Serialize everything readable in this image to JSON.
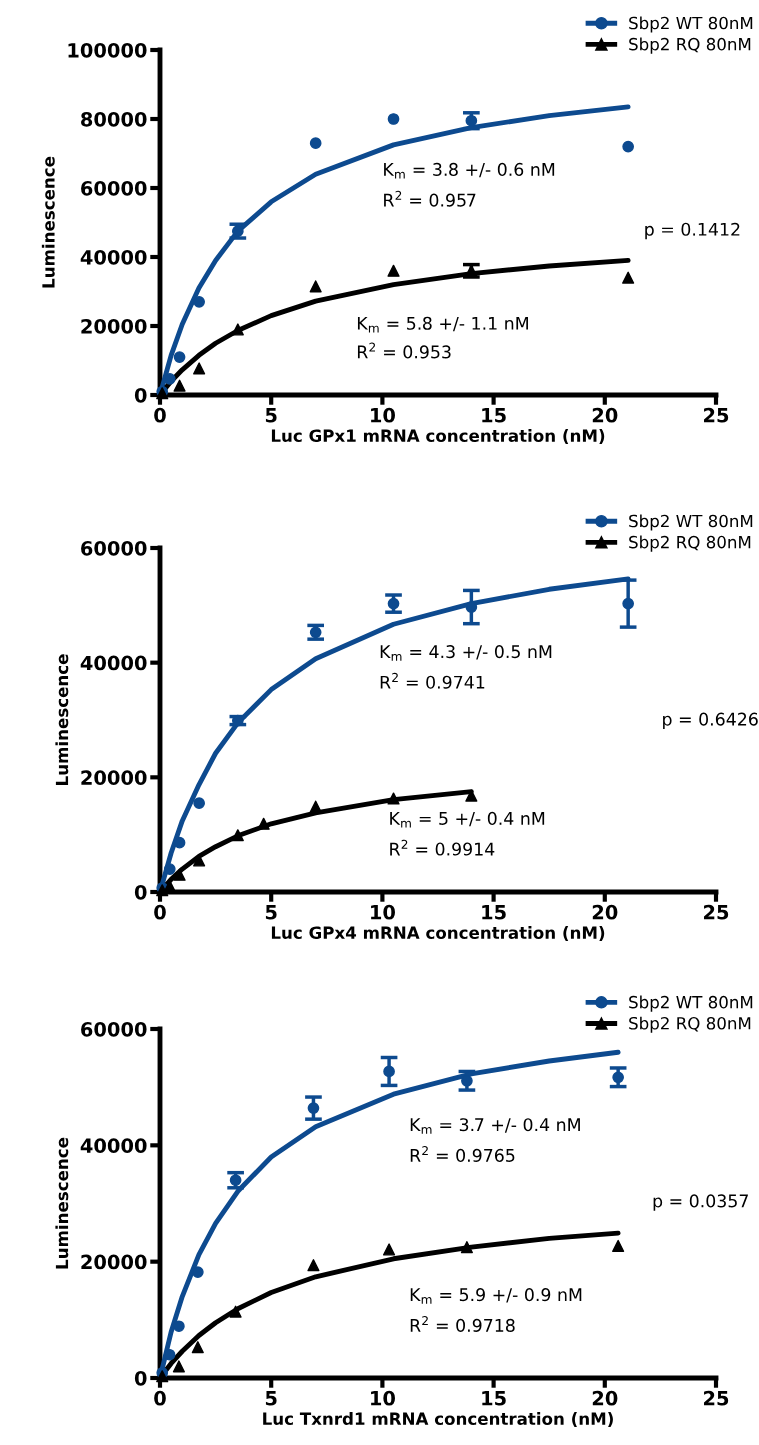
{
  "chart_data": [
    {
      "type": "scatter",
      "xlabel": "Luc GPx1 mRNA concentration (nM)",
      "ylabel": "Luminescence",
      "xlim": [
        0,
        25
      ],
      "xticks": [
        0,
        5,
        10,
        15,
        20,
        25
      ],
      "ylim": [
        0,
        100000
      ],
      "yticks": [
        0,
        20000,
        40000,
        60000,
        80000,
        100000
      ],
      "legend": "top right",
      "annotations": [
        "K$_{m}$ = 3.8 +/- 0.6 nM",
        "R$^{2}$ = 0.957",
        "K$_{m}$ = 5.8 +/- 1.1 nM",
        "R$^{2}$ = 0.953",
        "p = 0.1412"
      ],
      "series": [
        {
          "name": "Sbp2 WT 80nM",
          "color": "#0d4a8f",
          "marker": "circle",
          "x": [
            0.1,
            0.44,
            0.88,
            1.76,
            3.5,
            7,
            10.5,
            14,
            21.05
          ],
          "values": [
            1000,
            4700,
            11000,
            27000,
            47500,
            73000,
            80000,
            79500,
            72000
          ],
          "errors": [
            null,
            null,
            null,
            null,
            2000,
            null,
            null,
            2300,
            null
          ]
        },
        {
          "name": "Sbp2 RQ 80nM",
          "color": "#000000",
          "marker": "triangle",
          "x": [
            0.1,
            0.88,
            1.76,
            3.5,
            7,
            10.5,
            14,
            21.05
          ],
          "values": [
            500,
            2700,
            7700,
            19000,
            31500,
            36000,
            36000,
            34000
          ],
          "errors": [
            null,
            null,
            null,
            null,
            null,
            null,
            1800,
            null
          ]
        },
        {
          "type": "line",
          "color": "#0d4a8f",
          "marker": "none",
          "x": [
            0,
            0.5,
            1,
            1.75,
            2.5,
            3.5,
            5,
            7,
            10.5,
            14,
            17.5,
            21.05
          ],
          "values": [
            0,
            11500,
            20500,
            31000,
            39000,
            47500,
            56000,
            64000,
            72500,
            77500,
            81000,
            83500
          ]
        },
        {
          "type": "line",
          "color": "#000000",
          "marker": "none",
          "x": [
            0,
            0.5,
            1,
            1.75,
            2.5,
            3.5,
            5,
            7,
            10.5,
            14,
            17.5,
            21.05
          ],
          "values": [
            0,
            4000,
            7300,
            11500,
            15000,
            18700,
            23000,
            27200,
            32000,
            35200,
            37400,
            39000
          ]
        }
      ]
    },
    {
      "type": "scatter",
      "xlabel": "Luc GPx4 mRNA concentration (nM)",
      "ylabel": "Luminescence",
      "xlim": [
        0,
        25
      ],
      "xticks": [
        0,
        5,
        10,
        15,
        20,
        25
      ],
      "ylim": [
        0,
        60000
      ],
      "yticks": [
        0,
        20000,
        40000,
        60000
      ],
      "legend": "top right",
      "annotations": [
        "K$_{m}$ = 4.3 +/- 0.5 nM",
        "R$^{2}$ = 0.9741",
        "K$_{m}$ = 5 +/- 0.4 nM",
        "R$^{2}$ = 0.9914",
        "p = 0.6426"
      ],
      "series": [
        {
          "name": "Sbp2 WT 80nM",
          "color": "#0d4a8f",
          "marker": "circle",
          "x": [
            0.1,
            0.44,
            0.88,
            1.76,
            3.5,
            7,
            10.5,
            14,
            21.05
          ],
          "values": [
            700,
            4000,
            8600,
            15500,
            29900,
            45300,
            50300,
            49700,
            50300
          ],
          "errors": [
            null,
            null,
            null,
            null,
            700,
            1200,
            1500,
            2900,
            4100
          ]
        },
        {
          "name": "Sbp2 RQ 80nM",
          "color": "#000000",
          "marker": "triangle",
          "x": [
            0.1,
            0.44,
            0.88,
            1.76,
            3.5,
            4.66,
            7,
            10.5,
            14
          ],
          "values": [
            300,
            1000,
            3000,
            5500,
            9900,
            11900,
            14900,
            16300,
            16800
          ]
        },
        {
          "type": "line",
          "color": "#0d4a8f",
          "marker": "none",
          "x": [
            0,
            0.5,
            1,
            1.75,
            2.5,
            3.5,
            5,
            7,
            10.5,
            14,
            17.5,
            21.05
          ],
          "values": [
            0,
            6800,
            12400,
            18700,
            24200,
            29500,
            35300,
            40700,
            46700,
            50300,
            52800,
            54600
          ]
        },
        {
          "type": "line",
          "color": "#000000",
          "marker": "none",
          "x": [
            0,
            0.5,
            1,
            1.75,
            2.5,
            3.5,
            5,
            7,
            10.5,
            14
          ],
          "values": [
            0,
            2200,
            4000,
            6200,
            7900,
            9800,
            11900,
            13800,
            16100,
            17500
          ]
        }
      ]
    },
    {
      "type": "scatter",
      "xlabel": "Luc Txnrd1 mRNA concentration (nM)",
      "ylabel": "Luminescence",
      "xlim": [
        0,
        25
      ],
      "xticks": [
        0,
        5,
        10,
        15,
        20,
        25
      ],
      "ylim": [
        0,
        60000
      ],
      "yticks": [
        0,
        20000,
        40000,
        60000
      ],
      "legend": "top right",
      "annotations": [
        "K$_{m}$ = 3.7 +/- 0.4 nM",
        "R$^{2}$ = 0.9765",
        "K$_{m}$ = 5.9 +/- 0.9 nM",
        "R$^{2}$ = 0.9718",
        "p = 0.0357"
      ],
      "series": [
        {
          "name": "Sbp2 WT 80nM",
          "color": "#0d4a8f",
          "marker": "circle",
          "x": [
            0.1,
            0.43,
            0.85,
            1.7,
            3.4,
            6.9,
            10.3,
            13.8,
            20.6
          ],
          "values": [
            900,
            4000,
            8900,
            18200,
            34000,
            46400,
            52700,
            51100,
            51700
          ],
          "errors": [
            null,
            null,
            null,
            null,
            1300,
            1900,
            2400,
            1600,
            1600
          ]
        },
        {
          "name": "Sbp2 RQ 80nM",
          "color": "#000000",
          "marker": "triangle",
          "x": [
            0.1,
            0.85,
            1.7,
            3.4,
            6.9,
            10.3,
            13.8,
            20.6
          ],
          "values": [
            300,
            2000,
            5300,
            11400,
            19400,
            22100,
            22500,
            22700
          ]
        },
        {
          "type": "line",
          "color": "#0d4a8f",
          "marker": "none",
          "x": [
            0,
            0.5,
            1,
            1.75,
            2.5,
            3.5,
            5,
            7,
            10.5,
            14,
            17.5,
            20.6
          ],
          "values": [
            0,
            7900,
            14000,
            21200,
            26600,
            32100,
            38000,
            43200,
            48800,
            52300,
            54500,
            56000
          ]
        },
        {
          "type": "line",
          "color": "#000000",
          "marker": "none",
          "x": [
            0,
            0.5,
            1,
            1.75,
            2.5,
            3.5,
            5,
            7,
            10.5,
            14,
            17.5,
            20.6
          ],
          "values": [
            0,
            2500,
            4600,
            7300,
            9500,
            11900,
            14700,
            17400,
            20500,
            22500,
            24000,
            24900
          ]
        }
      ]
    }
  ]
}
